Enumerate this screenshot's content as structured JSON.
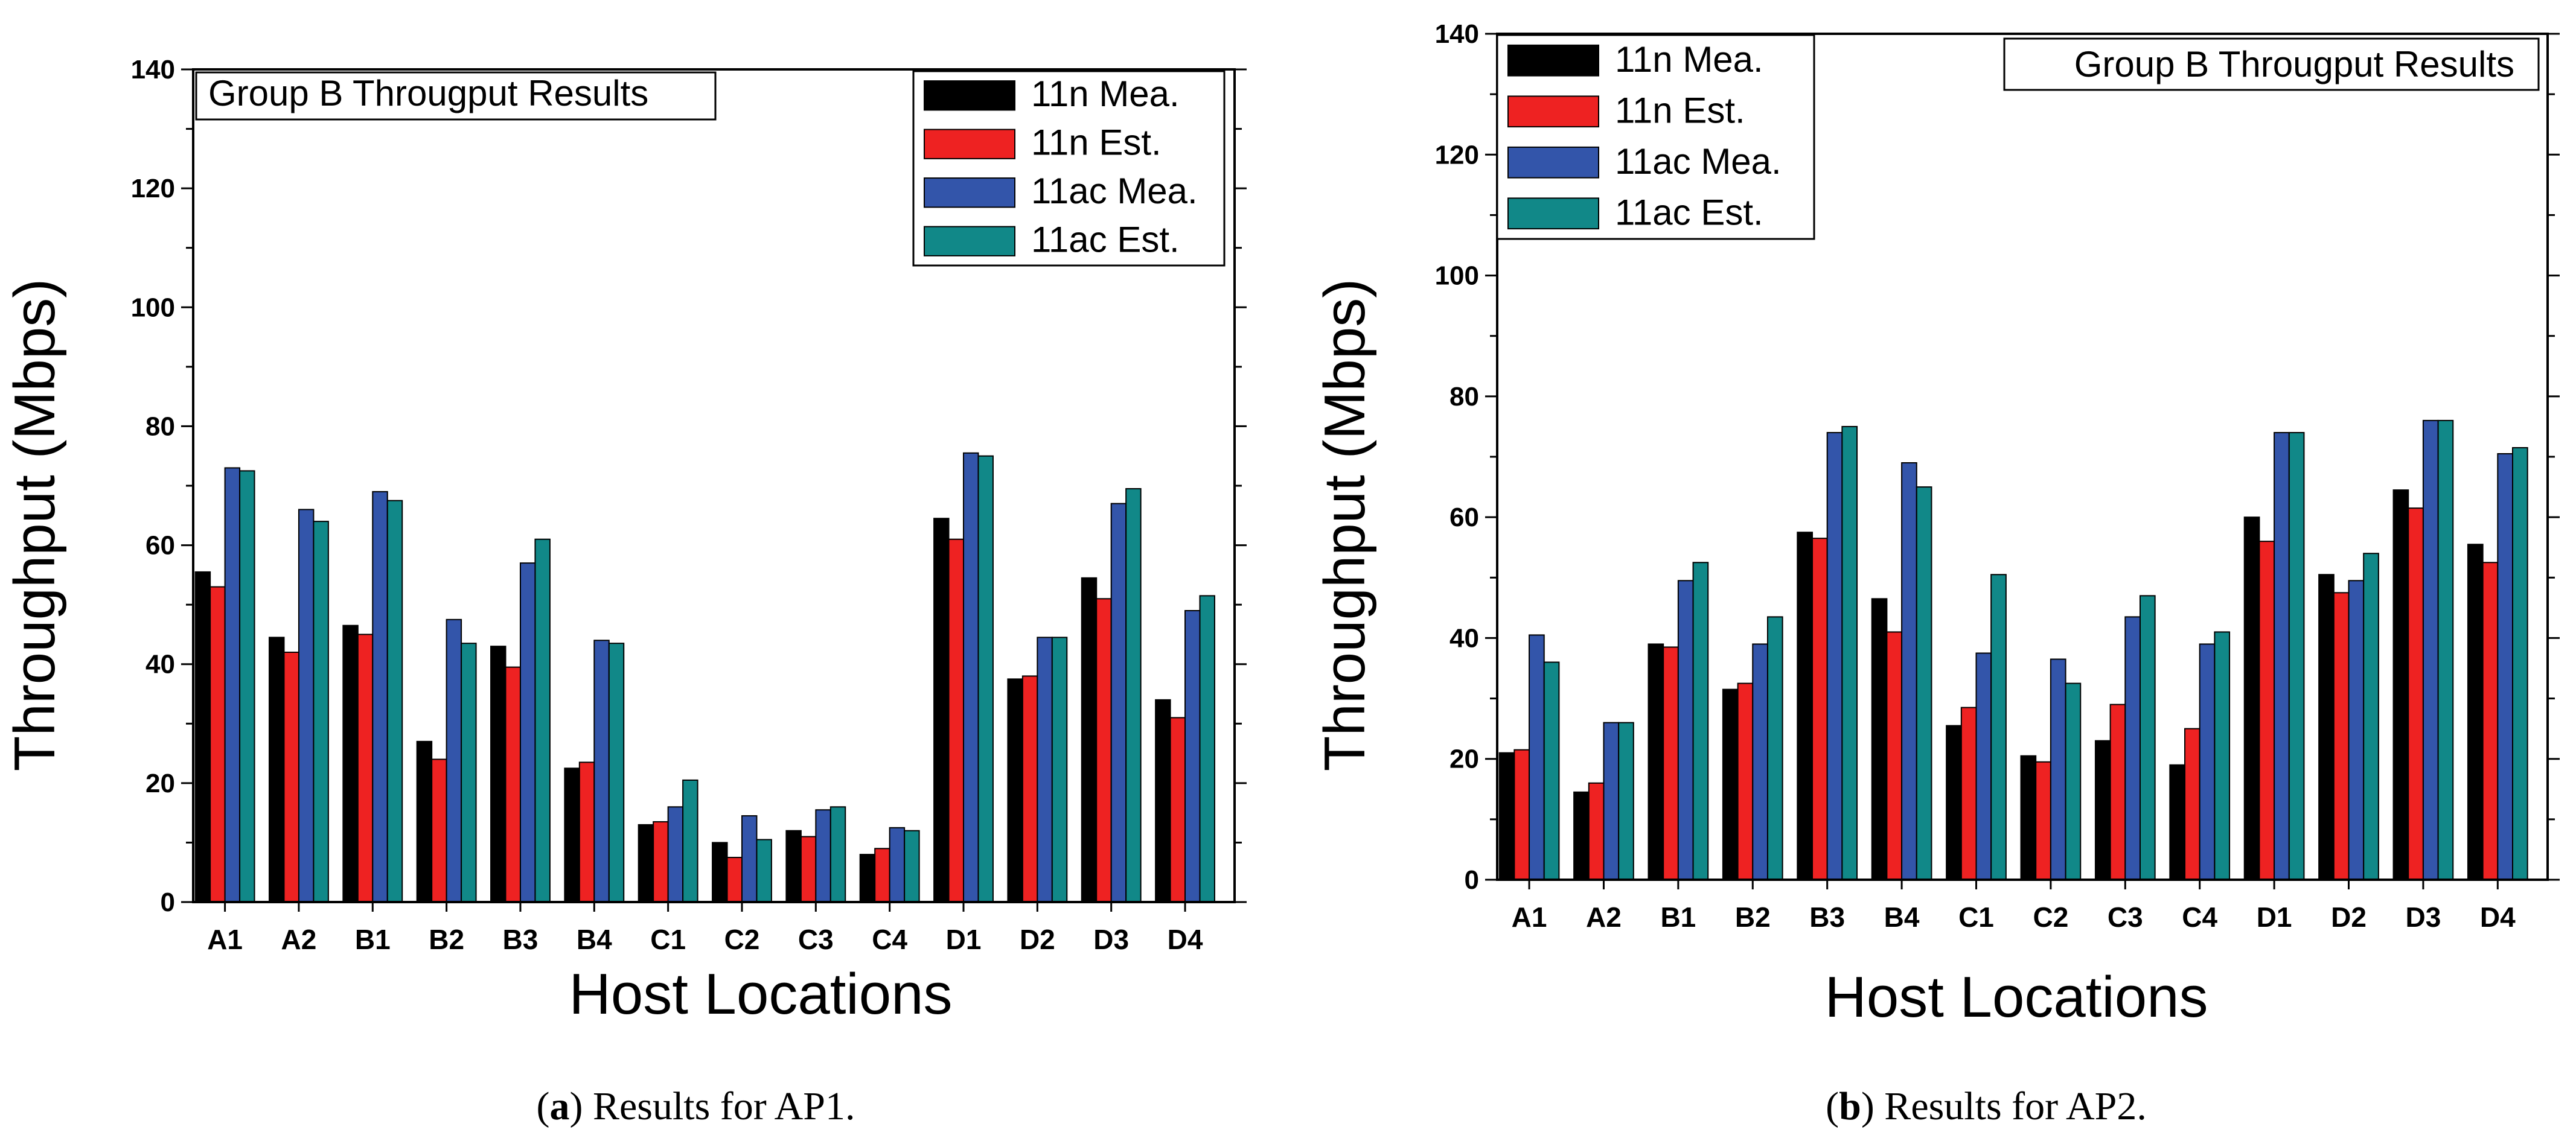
{
  "charts": [
    {
      "chart_data": {
        "type": "bar",
        "title": "Group B Througput Results",
        "xlabel": "Host Locations",
        "ylabel": "Throughput (Mbps)",
        "ylim": [
          0,
          140
        ],
        "yticks": [
          0,
          20,
          40,
          60,
          80,
          100,
          120,
          140
        ],
        "grid": false,
        "legend_position": "top-right",
        "categories": [
          "A1",
          "A2",
          "B1",
          "B2",
          "B3",
          "B4",
          "C1",
          "C2",
          "C3",
          "C4",
          "D1",
          "D2",
          "D3",
          "D4"
        ],
        "series": [
          {
            "name": "11n Mea.",
            "color": "#000000",
            "values": [
              55.5,
              44.5,
              46.5,
              27,
              43,
              22.5,
              13,
              10,
              12,
              8,
              64.5,
              37.5,
              54.5,
              34
            ]
          },
          {
            "name": "11n Est.",
            "color": "#ee2222",
            "values": [
              53,
              42,
              45,
              24,
              39.5,
              23.5,
              13.5,
              7.5,
              11,
              9,
              61,
              38,
              51,
              31
            ]
          },
          {
            "name": "11ac Mea.",
            "color": "#3355aa",
            "values": [
              73,
              66,
              69,
              47.5,
              57,
              44,
              16,
              14.5,
              15.5,
              12.5,
              75.5,
              44.5,
              67,
              49
            ]
          },
          {
            "name": "11ac Est.",
            "color": "#118888",
            "values": [
              72.5,
              64,
              67.5,
              43.5,
              61,
              43.5,
              20.5,
              10.5,
              16,
              12,
              75,
              44.5,
              69.5,
              51.5
            ]
          }
        ]
      },
      "caption": {
        "prefix": "(",
        "letter": "a",
        "suffix": ") Results for AP1."
      }
    },
    {
      "chart_data": {
        "type": "bar",
        "title": "Group B Througput Results",
        "xlabel": "Host Locations",
        "ylabel": "Throughput (Mbps)",
        "ylim": [
          0,
          140
        ],
        "yticks": [
          0,
          20,
          40,
          60,
          80,
          100,
          120,
          140
        ],
        "grid": false,
        "legend_position": "top-left",
        "categories": [
          "A1",
          "A2",
          "B1",
          "B2",
          "B3",
          "B4",
          "C1",
          "C2",
          "C3",
          "C4",
          "D1",
          "D2",
          "D3",
          "D4"
        ],
        "series": [
          {
            "name": "11n Mea.",
            "color": "#000000",
            "values": [
              21,
              14.5,
              39,
              31.5,
              57.5,
              46.5,
              25.5,
              20.5,
              23,
              19,
              60,
              50.5,
              64.5,
              55.5
            ]
          },
          {
            "name": "11n Est.",
            "color": "#ee2222",
            "values": [
              21.5,
              16,
              38.5,
              32.5,
              56.5,
              41,
              28.5,
              19.5,
              29,
              25,
              56,
              47.5,
              61.5,
              52.5
            ]
          },
          {
            "name": "11ac Mea.",
            "color": "#3355aa",
            "values": [
              40.5,
              26,
              49.5,
              39,
              74,
              69,
              37.5,
              36.5,
              43.5,
              39,
              74,
              49.5,
              76,
              70.5
            ]
          },
          {
            "name": "11ac Est.",
            "color": "#118888",
            "values": [
              36,
              26,
              52.5,
              43.5,
              75,
              65,
              50.5,
              32.5,
              47,
              41,
              74,
              54,
              76,
              71.5
            ]
          }
        ]
      },
      "caption": {
        "prefix": "(",
        "letter": "b",
        "suffix": ") Results for AP2."
      }
    }
  ]
}
